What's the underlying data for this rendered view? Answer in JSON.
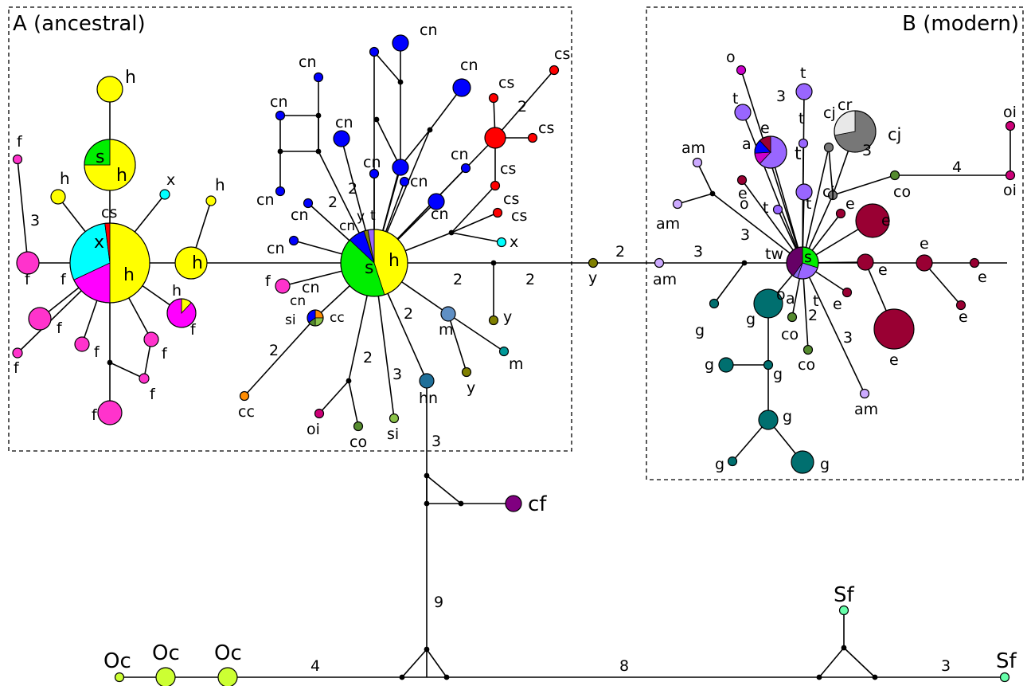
{
  "figure": {
    "box_a_label": "A (ancestral)",
    "box_b_label": "B (modern)"
  },
  "colors": {
    "h": "#ffff00",
    "s": "#00ee00",
    "x": "#00ffff",
    "f": "#ff33cc",
    "magenta": "#ff00ff",
    "cs": "#ff0000",
    "cn": "#0000ff",
    "y": "#808000",
    "cc": "#ff8c00",
    "si": "#8bc34a",
    "co": "#558b2f",
    "oi": "#cc0077",
    "m": "#5f8fc4",
    "mm": "#009999",
    "hn": "#1f6f99",
    "cf": "#800080",
    "t": "#9966ff",
    "o": "#cc00cc",
    "e": "#990033",
    "g": "#006f6f",
    "cj": "#777777",
    "cr": "#e8e8e8",
    "am": "#ccaaff",
    "tw": "#660066",
    "Oc": "#ccff33",
    "Sf": "#66ffaa",
    "junction": "#000000"
  },
  "labels": [
    {
      "id": "h1",
      "text": "h"
    },
    {
      "id": "s1",
      "text": "s"
    },
    {
      "id": "h2",
      "text": "h"
    },
    {
      "id": "x1",
      "text": "x"
    },
    {
      "id": "h3",
      "text": "h"
    },
    {
      "id": "h4",
      "text": "h"
    },
    {
      "id": "cs1",
      "text": "cs"
    },
    {
      "id": "f1",
      "text": "f"
    },
    {
      "id": "f2",
      "text": "f"
    },
    {
      "id": "xm",
      "text": "x"
    },
    {
      "id": "hm",
      "text": "h"
    },
    {
      "id": "f3",
      "text": "f"
    },
    {
      "id": "hc",
      "text": "h"
    },
    {
      "id": "h5",
      "text": "h"
    },
    {
      "id": "f4",
      "text": "f"
    },
    {
      "id": "f5",
      "text": "f"
    },
    {
      "id": "f6",
      "text": "f"
    },
    {
      "id": "f7",
      "text": "f"
    },
    {
      "id": "f8",
      "text": "f"
    },
    {
      "id": "f9",
      "text": "f"
    },
    {
      "id": "f10",
      "text": "f"
    },
    {
      "id": "cn1",
      "text": "cn"
    },
    {
      "id": "cn2",
      "text": "cn"
    },
    {
      "id": "cn3",
      "text": "cn"
    },
    {
      "id": "cn4",
      "text": "cn"
    },
    {
      "id": "cn5",
      "text": "cn"
    },
    {
      "id": "cn6",
      "text": "cn"
    },
    {
      "id": "cn7",
      "text": "cn"
    },
    {
      "id": "cn8",
      "text": "cn"
    },
    {
      "id": "cn9",
      "text": "cn"
    },
    {
      "id": "cn10",
      "text": "cn"
    },
    {
      "id": "cn11",
      "text": "cn"
    },
    {
      "id": "cn12",
      "text": "cn"
    },
    {
      "id": "cn13",
      "text": "cn"
    },
    {
      "id": "cny",
      "text": "cn"
    },
    {
      "id": "yc",
      "text": "y"
    },
    {
      "id": "tc",
      "text": "t"
    },
    {
      "id": "sc",
      "text": "s"
    },
    {
      "id": "hcc",
      "text": "h"
    },
    {
      "id": "cs2",
      "text": "cs"
    },
    {
      "id": "cs3",
      "text": "cs"
    },
    {
      "id": "cs4",
      "text": "cs"
    },
    {
      "id": "cs5",
      "text": "cs"
    },
    {
      "id": "cs6",
      "text": "cs"
    },
    {
      "id": "cs7",
      "text": "cs"
    },
    {
      "id": "x2",
      "text": "x"
    },
    {
      "id": "f11",
      "text": "f"
    },
    {
      "id": "cn14",
      "text": "cn"
    },
    {
      "id": "si1",
      "text": "si"
    },
    {
      "id": "cc1",
      "text": "cc"
    },
    {
      "id": "cc2",
      "text": "cc"
    },
    {
      "id": "oi1",
      "text": "oi"
    },
    {
      "id": "co1",
      "text": "co"
    },
    {
      "id": "si2",
      "text": "si"
    },
    {
      "id": "hn1",
      "text": "hn"
    },
    {
      "id": "m1",
      "text": "m"
    },
    {
      "id": "m2",
      "text": "m"
    },
    {
      "id": "y1",
      "text": "y"
    },
    {
      "id": "y2",
      "text": "y"
    },
    {
      "id": "y3",
      "text": "y"
    },
    {
      "id": "cf1",
      "text": "cf"
    },
    {
      "id": "am1",
      "text": "am"
    },
    {
      "id": "am2",
      "text": "am"
    },
    {
      "id": "am3",
      "text": "am"
    },
    {
      "id": "am4",
      "text": "am"
    },
    {
      "id": "o1",
      "text": "o"
    },
    {
      "id": "o2",
      "text": "o"
    },
    {
      "id": "o3",
      "text": "o"
    },
    {
      "id": "t1",
      "text": "t"
    },
    {
      "id": "t2",
      "text": "t"
    },
    {
      "id": "t3",
      "text": "t"
    },
    {
      "id": "t4",
      "text": "t"
    },
    {
      "id": "t5",
      "text": "t"
    },
    {
      "id": "t6",
      "text": "t"
    },
    {
      "id": "t7",
      "text": "t"
    },
    {
      "id": "e1",
      "text": "e"
    },
    {
      "id": "a1",
      "text": "a"
    },
    {
      "id": "a2",
      "text": "a"
    },
    {
      "id": "e2",
      "text": "e"
    },
    {
      "id": "e3",
      "text": "e"
    },
    {
      "id": "e4",
      "text": "e"
    },
    {
      "id": "e5",
      "text": "e"
    },
    {
      "id": "e6",
      "text": "e"
    },
    {
      "id": "e7",
      "text": "e"
    },
    {
      "id": "e8",
      "text": "e"
    },
    {
      "id": "e9",
      "text": "e"
    },
    {
      "id": "e10",
      "text": "e"
    },
    {
      "id": "cj1",
      "text": "cj"
    },
    {
      "id": "cj2",
      "text": "cj"
    },
    {
      "id": "cj3",
      "text": "cj"
    },
    {
      "id": "cr1",
      "text": "cr"
    },
    {
      "id": "co2",
      "text": "co"
    },
    {
      "id": "co3",
      "text": "co"
    },
    {
      "id": "co4",
      "text": "co"
    },
    {
      "id": "oi2",
      "text": "oi"
    },
    {
      "id": "oi3",
      "text": "oi"
    },
    {
      "id": "tw1",
      "text": "tw"
    },
    {
      "id": "sb",
      "text": "s"
    },
    {
      "id": "g1",
      "text": "g"
    },
    {
      "id": "g2",
      "text": "g"
    },
    {
      "id": "g3",
      "text": "g"
    },
    {
      "id": "g4",
      "text": "g"
    },
    {
      "id": "g5",
      "text": "g"
    },
    {
      "id": "g6",
      "text": "g"
    },
    {
      "id": "g7",
      "text": "g"
    },
    {
      "id": "g8",
      "text": "g"
    },
    {
      "id": "oc1",
      "text": "Oc"
    },
    {
      "id": "oc2",
      "text": "Oc"
    },
    {
      "id": "oc3",
      "text": "Oc"
    },
    {
      "id": "sf1",
      "text": "Sf"
    },
    {
      "id": "sf2",
      "text": "Sf"
    }
  ],
  "mutation_counts": [
    {
      "id": "m_a",
      "text": "3"
    },
    {
      "id": "m_b",
      "text": "2"
    },
    {
      "id": "m_c",
      "text": "2"
    },
    {
      "id": "m_d",
      "text": "2"
    },
    {
      "id": "m_e",
      "text": "2"
    },
    {
      "id": "m_f",
      "text": "2"
    },
    {
      "id": "m_g",
      "text": "2"
    },
    {
      "id": "m_h",
      "text": "3"
    },
    {
      "id": "m_i",
      "text": "2"
    },
    {
      "id": "m_j",
      "text": "3"
    },
    {
      "id": "m_k",
      "text": "2"
    },
    {
      "id": "m_l",
      "text": "2"
    },
    {
      "id": "m_m",
      "text": "3"
    },
    {
      "id": "m_n",
      "text": "3"
    },
    {
      "id": "m_o",
      "text": "3"
    },
    {
      "id": "m_p",
      "text": "4"
    },
    {
      "id": "m_q",
      "text": "3"
    },
    {
      "id": "m_r",
      "text": "2"
    },
    {
      "id": "m_s",
      "text": "3"
    },
    {
      "id": "m_t",
      "text": "9"
    },
    {
      "id": "m_u",
      "text": "4"
    },
    {
      "id": "m_v",
      "text": "8"
    },
    {
      "id": "m_w",
      "text": "3"
    }
  ]
}
